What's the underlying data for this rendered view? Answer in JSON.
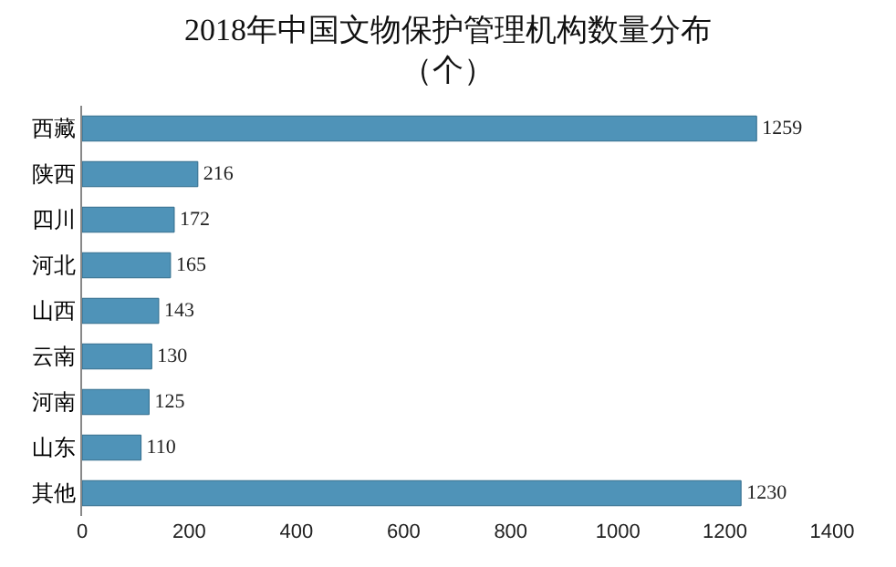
{
  "chart_data": {
    "type": "bar",
    "orientation": "horizontal",
    "title": "2018年中国文物保护管理机构数量分布",
    "subtitle": "（个）",
    "categories": [
      "西藏",
      "陕西",
      "四川",
      "河北",
      "山西",
      "云南",
      "河南",
      "山东",
      "其他"
    ],
    "values": [
      1259,
      216,
      172,
      165,
      143,
      130,
      125,
      110,
      1230
    ],
    "color": "#4f93b8",
    "data_labels": true,
    "grid": false,
    "legend": false,
    "xlim": [
      0,
      1400
    ],
    "xticks": [
      0,
      200,
      400,
      600,
      800,
      1000,
      1200,
      1400
    ]
  }
}
